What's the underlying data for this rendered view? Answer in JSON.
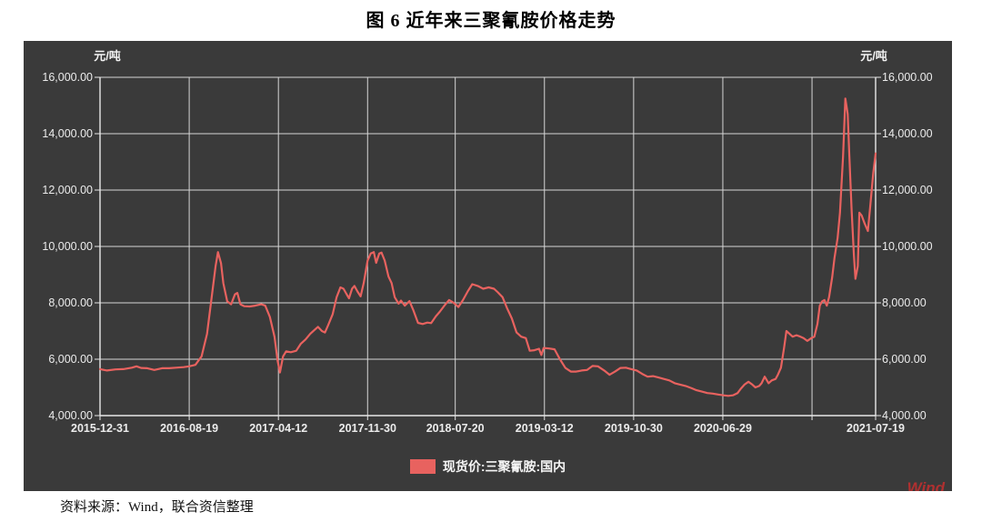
{
  "page": {
    "title": "图 6  近年来三聚氰胺价格走势",
    "source": "资料来源：Wind，联合资信整理",
    "watermark": "Wind"
  },
  "colors": {
    "panel_bg": "#3a3a3a",
    "line": "#e8625f",
    "grid": "#d6d6d6",
    "axis": "#e8e8e8",
    "label_text": "#ececec",
    "watermark_red": "#b03030"
  },
  "chart_data": {
    "type": "line",
    "title": "图 6 近年来三聚氰胺价格走势",
    "unit_left": "元/吨",
    "unit_right": "元/吨",
    "legend": [
      {
        "label": "现货价:三聚氰胺:国内",
        "color": "#e8625f"
      }
    ],
    "legend_position": "bottom-center",
    "grid": true,
    "ylim": [
      4000,
      16000
    ],
    "yticks": [
      {
        "v": 16000,
        "label": "16,000.00"
      },
      {
        "v": 14000,
        "label": "14,000.00"
      },
      {
        "v": 12000,
        "label": "12,000.00"
      },
      {
        "v": 10000,
        "label": "10,000.00"
      },
      {
        "v": 8000,
        "label": "8,000.00"
      },
      {
        "v": 6000,
        "label": "6,000.00"
      },
      {
        "v": 4000,
        "label": "4,000.00"
      }
    ],
    "xticks": [
      {
        "f": 0.0,
        "label": "2015-12-31"
      },
      {
        "f": 0.115,
        "label": "2016-08-19"
      },
      {
        "f": 0.23,
        "label": "2017-04-12"
      },
      {
        "f": 0.345,
        "label": "2017-11-30"
      },
      {
        "f": 0.458,
        "label": "2018-07-20"
      },
      {
        "f": 0.573,
        "label": "2019-03-12"
      },
      {
        "f": 0.688,
        "label": "2019-10-30"
      },
      {
        "f": 0.803,
        "label": "2020-06-29"
      },
      {
        "f": 0.918,
        "label": ""
      },
      {
        "f": 1.0,
        "label": "2021-07-19"
      }
    ],
    "series": [
      {
        "name": "现货价:三聚氰胺:国内",
        "color": "#e8625f",
        "points": [
          [
            0.0,
            5650
          ],
          [
            0.009,
            5600
          ],
          [
            0.02,
            5640
          ],
          [
            0.03,
            5650
          ],
          [
            0.041,
            5700
          ],
          [
            0.047,
            5750
          ],
          [
            0.053,
            5690
          ],
          [
            0.061,
            5680
          ],
          [
            0.07,
            5620
          ],
          [
            0.08,
            5680
          ],
          [
            0.089,
            5680
          ],
          [
            0.098,
            5700
          ],
          [
            0.108,
            5720
          ],
          [
            0.115,
            5750
          ],
          [
            0.123,
            5800
          ],
          [
            0.131,
            6100
          ],
          [
            0.138,
            6900
          ],
          [
            0.144,
            8200
          ],
          [
            0.149,
            9300
          ],
          [
            0.152,
            9800
          ],
          [
            0.156,
            9400
          ],
          [
            0.159,
            8700
          ],
          [
            0.164,
            8050
          ],
          [
            0.169,
            7950
          ],
          [
            0.174,
            8300
          ],
          [
            0.177,
            8350
          ],
          [
            0.181,
            7950
          ],
          [
            0.186,
            7880
          ],
          [
            0.193,
            7870
          ],
          [
            0.2,
            7900
          ],
          [
            0.208,
            7950
          ],
          [
            0.213,
            7900
          ],
          [
            0.219,
            7500
          ],
          [
            0.225,
            6800
          ],
          [
            0.229,
            5950
          ],
          [
            0.232,
            5530
          ],
          [
            0.236,
            6100
          ],
          [
            0.24,
            6280
          ],
          [
            0.246,
            6250
          ],
          [
            0.253,
            6300
          ],
          [
            0.259,
            6550
          ],
          [
            0.265,
            6700
          ],
          [
            0.271,
            6900
          ],
          [
            0.277,
            7050
          ],
          [
            0.281,
            7150
          ],
          [
            0.286,
            7000
          ],
          [
            0.29,
            6950
          ],
          [
            0.294,
            7200
          ],
          [
            0.3,
            7600
          ],
          [
            0.305,
            8200
          ],
          [
            0.31,
            8550
          ],
          [
            0.314,
            8500
          ],
          [
            0.318,
            8300
          ],
          [
            0.321,
            8160
          ],
          [
            0.325,
            8500
          ],
          [
            0.328,
            8600
          ],
          [
            0.332,
            8400
          ],
          [
            0.336,
            8230
          ],
          [
            0.34,
            8700
          ],
          [
            0.345,
            9500
          ],
          [
            0.349,
            9750
          ],
          [
            0.353,
            9800
          ],
          [
            0.356,
            9420
          ],
          [
            0.36,
            9750
          ],
          [
            0.363,
            9780
          ],
          [
            0.367,
            9500
          ],
          [
            0.372,
            8930
          ],
          [
            0.376,
            8700
          ],
          [
            0.38,
            8200
          ],
          [
            0.385,
            7970
          ],
          [
            0.388,
            8080
          ],
          [
            0.393,
            7900
          ],
          [
            0.399,
            8060
          ],
          [
            0.404,
            7740
          ],
          [
            0.41,
            7290
          ],
          [
            0.416,
            7250
          ],
          [
            0.422,
            7300
          ],
          [
            0.427,
            7280
          ],
          [
            0.433,
            7520
          ],
          [
            0.438,
            7680
          ],
          [
            0.444,
            7900
          ],
          [
            0.45,
            8100
          ],
          [
            0.456,
            8000
          ],
          [
            0.462,
            7850
          ],
          [
            0.468,
            8100
          ],
          [
            0.474,
            8400
          ],
          [
            0.48,
            8660
          ],
          [
            0.487,
            8600
          ],
          [
            0.494,
            8500
          ],
          [
            0.501,
            8550
          ],
          [
            0.508,
            8500
          ],
          [
            0.513,
            8370
          ],
          [
            0.519,
            8200
          ],
          [
            0.525,
            7800
          ],
          [
            0.531,
            7450
          ],
          [
            0.537,
            6950
          ],
          [
            0.543,
            6800
          ],
          [
            0.549,
            6750
          ],
          [
            0.554,
            6300
          ],
          [
            0.56,
            6320
          ],
          [
            0.566,
            6370
          ],
          [
            0.569,
            6150
          ],
          [
            0.572,
            6400
          ],
          [
            0.579,
            6380
          ],
          [
            0.586,
            6350
          ],
          [
            0.593,
            6000
          ],
          [
            0.6,
            5690
          ],
          [
            0.607,
            5560
          ],
          [
            0.614,
            5560
          ],
          [
            0.621,
            5600
          ],
          [
            0.628,
            5620
          ],
          [
            0.635,
            5760
          ],
          [
            0.642,
            5750
          ],
          [
            0.65,
            5600
          ],
          [
            0.657,
            5450
          ],
          [
            0.664,
            5560
          ],
          [
            0.671,
            5690
          ],
          [
            0.678,
            5700
          ],
          [
            0.685,
            5650
          ],
          [
            0.692,
            5600
          ],
          [
            0.699,
            5480
          ],
          [
            0.706,
            5380
          ],
          [
            0.713,
            5400
          ],
          [
            0.72,
            5350
          ],
          [
            0.727,
            5300
          ],
          [
            0.734,
            5250
          ],
          [
            0.741,
            5150
          ],
          [
            0.748,
            5100
          ],
          [
            0.755,
            5050
          ],
          [
            0.762,
            4980
          ],
          [
            0.769,
            4900
          ],
          [
            0.776,
            4850
          ],
          [
            0.783,
            4800
          ],
          [
            0.79,
            4780
          ],
          [
            0.797,
            4750
          ],
          [
            0.804,
            4720
          ],
          [
            0.81,
            4700
          ],
          [
            0.816,
            4720
          ],
          [
            0.822,
            4800
          ],
          [
            0.826,
            4950
          ],
          [
            0.831,
            5100
          ],
          [
            0.836,
            5200
          ],
          [
            0.841,
            5100
          ],
          [
            0.845,
            5000
          ],
          [
            0.85,
            5050
          ],
          [
            0.853,
            5150
          ],
          [
            0.857,
            5380
          ],
          [
            0.862,
            5150
          ],
          [
            0.866,
            5250
          ],
          [
            0.871,
            5300
          ],
          [
            0.874,
            5450
          ],
          [
            0.878,
            5700
          ],
          [
            0.882,
            6400
          ],
          [
            0.885,
            7000
          ],
          [
            0.889,
            6900
          ],
          [
            0.893,
            6800
          ],
          [
            0.898,
            6850
          ],
          [
            0.903,
            6800
          ],
          [
            0.907,
            6750
          ],
          [
            0.912,
            6650
          ],
          [
            0.917,
            6750
          ],
          [
            0.921,
            6800
          ],
          [
            0.925,
            7250
          ],
          [
            0.928,
            7900
          ],
          [
            0.931,
            8050
          ],
          [
            0.934,
            8100
          ],
          [
            0.937,
            7900
          ],
          [
            0.94,
            8200
          ],
          [
            0.944,
            8900
          ],
          [
            0.947,
            9600
          ],
          [
            0.951,
            10300
          ],
          [
            0.954,
            11200
          ],
          [
            0.958,
            13200
          ],
          [
            0.961,
            15250
          ],
          [
            0.964,
            14700
          ],
          [
            0.966,
            13300
          ],
          [
            0.969,
            11300
          ],
          [
            0.972,
            9700
          ],
          [
            0.974,
            8850
          ],
          [
            0.977,
            9300
          ],
          [
            0.979,
            11200
          ],
          [
            0.982,
            11100
          ],
          [
            0.986,
            10800
          ],
          [
            0.99,
            10550
          ],
          [
            0.993,
            11400
          ],
          [
            0.997,
            12600
          ],
          [
            1.0,
            13300
          ]
        ]
      }
    ]
  }
}
